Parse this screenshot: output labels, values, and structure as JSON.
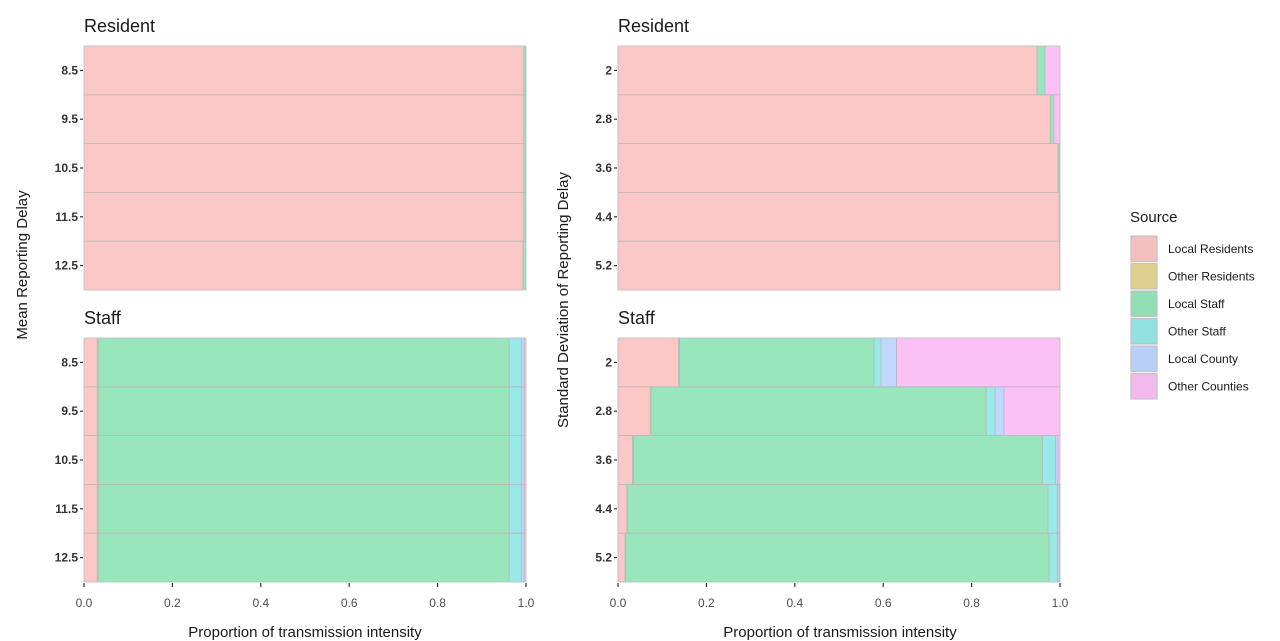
{
  "source_legend": {
    "title": "Source",
    "items": [
      {
        "label": "Local Residents",
        "color": "#F8766D"
      },
      {
        "label": "Other Residents",
        "color": "#C49A00"
      },
      {
        "label": "Local Staff",
        "color": "#00C15A"
      },
      {
        "label": "Other Staff",
        "color": "#00C8C8"
      },
      {
        "label": "Local County",
        "color": "#619CFF"
      },
      {
        "label": "Other Counties",
        "color": "#F564E3"
      }
    ]
  },
  "chart_data": [
    {
      "type": "bar",
      "orientation": "horizontal",
      "stacked": true,
      "title": "Resident",
      "ylabel": "Mean Reporting Delay",
      "xlabel": "Proportion of transmission intensity",
      "xlim": [
        0,
        1
      ],
      "xticks": [
        "0.0",
        "0.2",
        "0.4",
        "0.6",
        "0.8",
        "1.0"
      ],
      "categories": [
        "8.5",
        "9.5",
        "10.5",
        "11.5",
        "12.5"
      ],
      "series": [
        {
          "name": "Local Residents",
          "values": [
            0.995,
            0.995,
            0.995,
            0.995,
            0.993
          ]
        },
        {
          "name": "Other Residents",
          "values": [
            0.0,
            0.0,
            0.0,
            0.0,
            0.0
          ]
        },
        {
          "name": "Local Staff",
          "values": [
            0.005,
            0.005,
            0.005,
            0.005,
            0.007
          ]
        },
        {
          "name": "Other Staff",
          "values": [
            0.0,
            0.0,
            0.0,
            0.0,
            0.0
          ]
        },
        {
          "name": "Local County",
          "values": [
            0.0,
            0.0,
            0.0,
            0.0,
            0.0
          ]
        },
        {
          "name": "Other Counties",
          "values": [
            0.0,
            0.0,
            0.0,
            0.0,
            0.0
          ]
        }
      ]
    },
    {
      "type": "bar",
      "orientation": "horizontal",
      "stacked": true,
      "title": "Staff",
      "ylabel": "Mean Reporting Delay",
      "xlabel": "Proportion of transmission intensity",
      "xlim": [
        0,
        1
      ],
      "xticks": [
        "0.0",
        "0.2",
        "0.4",
        "0.6",
        "0.8",
        "1.0"
      ],
      "categories": [
        "8.5",
        "9.5",
        "10.5",
        "11.5",
        "12.5"
      ],
      "series": [
        {
          "name": "Local Residents",
          "values": [
            0.03,
            0.03,
            0.03,
            0.03,
            0.03
          ]
        },
        {
          "name": "Other Residents",
          "values": [
            0.002,
            0.002,
            0.002,
            0.002,
            0.002
          ]
        },
        {
          "name": "Local Staff",
          "values": [
            0.93,
            0.93,
            0.93,
            0.93,
            0.93
          ]
        },
        {
          "name": "Other Staff",
          "values": [
            0.028,
            0.028,
            0.028,
            0.028,
            0.028
          ]
        },
        {
          "name": "Local County",
          "values": [
            0.006,
            0.006,
            0.006,
            0.006,
            0.006
          ]
        },
        {
          "name": "Other Counties",
          "values": [
            0.004,
            0.004,
            0.004,
            0.004,
            0.004
          ]
        }
      ]
    },
    {
      "type": "bar",
      "orientation": "horizontal",
      "stacked": true,
      "title": "Resident",
      "ylabel": "Standard Deviation of Reporting Delay",
      "xlabel": "Proportion of transmission intensity",
      "xlim": [
        0,
        1
      ],
      "xticks": [
        "0.0",
        "0.2",
        "0.4",
        "0.6",
        "0.8",
        "1.0"
      ],
      "categories": [
        "2",
        "2.8",
        "3.6",
        "4.4",
        "5.2"
      ],
      "series": [
        {
          "name": "Local Residents",
          "values": [
            0.948,
            0.978,
            0.995,
            0.998,
            0.999
          ]
        },
        {
          "name": "Other Residents",
          "values": [
            0.0,
            0.0,
            0.0,
            0.0,
            0.0
          ]
        },
        {
          "name": "Local Staff",
          "values": [
            0.018,
            0.008,
            0.003,
            0.001,
            0.001
          ]
        },
        {
          "name": "Other Staff",
          "values": [
            0.0,
            0.0,
            0.0,
            0.0,
            0.0
          ]
        },
        {
          "name": "Local County",
          "values": [
            0.0,
            0.0,
            0.0,
            0.0,
            0.0
          ]
        },
        {
          "name": "Other Counties",
          "values": [
            0.034,
            0.014,
            0.002,
            0.001,
            0.0
          ]
        }
      ]
    },
    {
      "type": "bar",
      "orientation": "horizontal",
      "stacked": true,
      "title": "Staff",
      "ylabel": "Standard Deviation of Reporting Delay",
      "xlabel": "Proportion of transmission intensity",
      "xlim": [
        0,
        1
      ],
      "xticks": [
        "0.0",
        "0.2",
        "0.4",
        "0.6",
        "0.8",
        "1.0"
      ],
      "categories": [
        "2",
        "2.8",
        "3.6",
        "4.4",
        "5.2"
      ],
      "series": [
        {
          "name": "Local Residents",
          "values": [
            0.137,
            0.073,
            0.033,
            0.02,
            0.016
          ]
        },
        {
          "name": "Other Residents",
          "values": [
            0.002,
            0.002,
            0.002,
            0.001,
            0.001
          ]
        },
        {
          "name": "Local Staff",
          "values": [
            0.44,
            0.758,
            0.925,
            0.952,
            0.958
          ]
        },
        {
          "name": "Other Staff",
          "values": [
            0.016,
            0.02,
            0.03,
            0.021,
            0.019
          ]
        },
        {
          "name": "Local County",
          "values": [
            0.035,
            0.02,
            0.005,
            0.004,
            0.004
          ]
        },
        {
          "name": "Other Counties",
          "values": [
            0.37,
            0.127,
            0.005,
            0.002,
            0.002
          ]
        }
      ]
    }
  ]
}
